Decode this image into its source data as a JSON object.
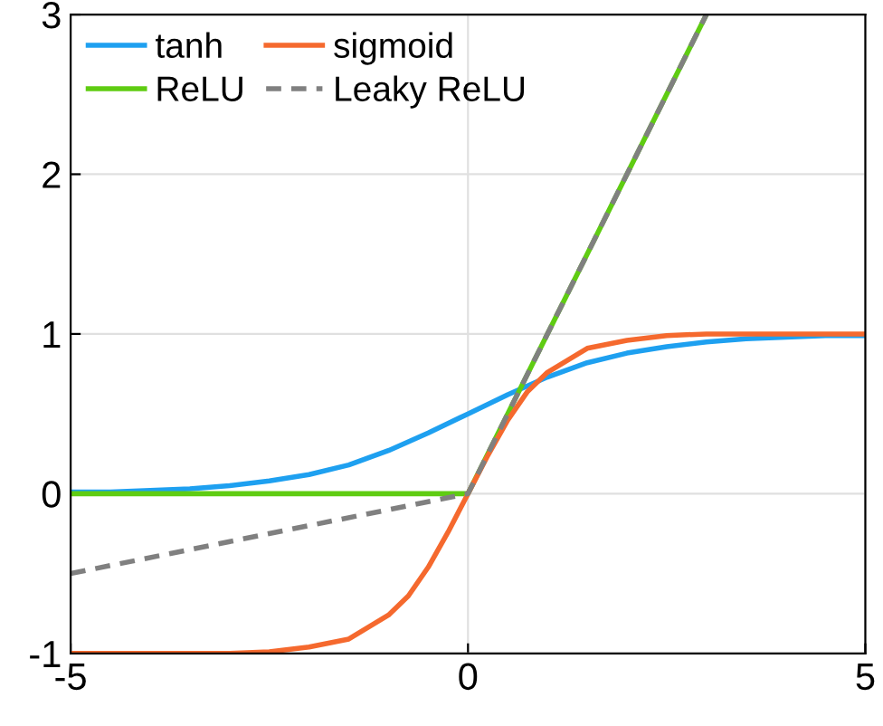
{
  "chart_data": {
    "type": "line",
    "xlim": [
      -5,
      5
    ],
    "ylim": [
      -1,
      3
    ],
    "xticks": [
      -5,
      0,
      5
    ],
    "yticks": [
      -1,
      0,
      1,
      2,
      3
    ],
    "grid": true,
    "legend": "top left",
    "line_style": "solid",
    "marker": "none",
    "series": [
      {
        "name": "tanh",
        "color": "#1ea0f0",
        "x": [
          -5,
          -4.5,
          -4,
          -3.5,
          -3,
          -2.5,
          -2,
          -1.5,
          -1,
          -0.5,
          0,
          0.5,
          1,
          1.5,
          2,
          2.5,
          3,
          3.5,
          4,
          4.5,
          5
        ],
        "values": [
          0.01,
          0.01,
          0.02,
          0.03,
          0.05,
          0.08,
          0.12,
          0.18,
          0.27,
          0.38,
          0.5,
          0.62,
          0.73,
          0.82,
          0.88,
          0.92,
          0.95,
          0.97,
          0.98,
          0.99,
          0.99
        ]
      },
      {
        "name": "ReLU",
        "color": "#5fcc12",
        "x": [
          -5,
          0,
          3
        ],
        "values": [
          0,
          0,
          3
        ]
      },
      {
        "name": "sigmoid",
        "color": "#f5692e",
        "x": [
          -5,
          -4.5,
          -4,
          -3.5,
          -3,
          -2.5,
          -2,
          -1.5,
          -1,
          -0.75,
          -0.5,
          -0.25,
          0,
          0.25,
          0.5,
          0.75,
          1,
          1.5,
          2,
          2.5,
          3,
          3.5,
          4,
          4.5,
          5
        ],
        "values": [
          -1,
          -1,
          -1,
          -1,
          -1,
          -0.99,
          -0.96,
          -0.91,
          -0.76,
          -0.64,
          -0.46,
          -0.24,
          0,
          0.24,
          0.46,
          0.64,
          0.76,
          0.91,
          0.96,
          0.99,
          1,
          1,
          1,
          1,
          1
        ]
      },
      {
        "name": "Leaky ReLU",
        "color": "#808080",
        "line_style": "dashed",
        "x": [
          -5,
          0,
          3
        ],
        "values": [
          -0.5,
          0,
          3
        ]
      }
    ]
  }
}
